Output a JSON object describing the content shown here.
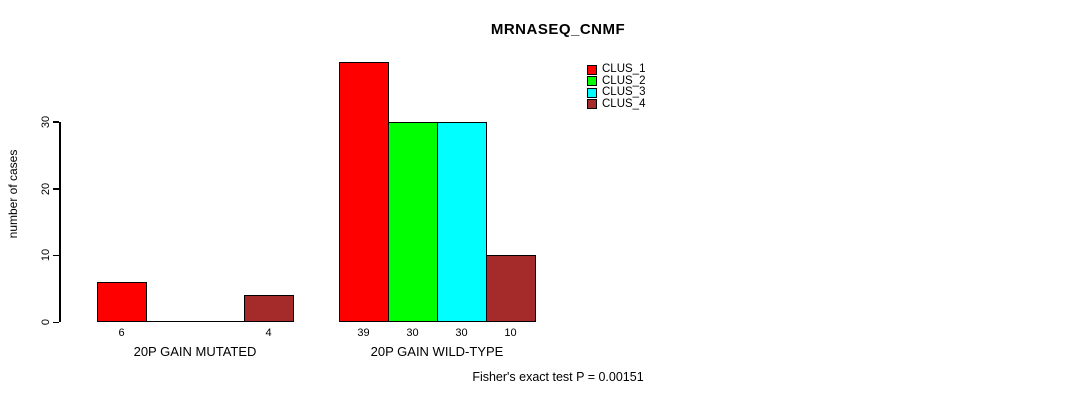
{
  "title": "MRNASEQ_CNMF",
  "y_axis": {
    "label": "number of cases"
  },
  "footnote": "Fisher's exact test P = 0.00151",
  "chart_data": {
    "type": "bar",
    "title": "MRNASEQ_CNMF",
    "xlabel": "",
    "ylabel": "number of cases",
    "categories": [
      "20P GAIN MUTATED",
      "20P GAIN WILD-TYPE"
    ],
    "series": [
      {
        "name": "CLUS_1",
        "color": "#FF0000",
        "values": [
          6,
          39
        ]
      },
      {
        "name": "CLUS_2",
        "color": "#00FF00",
        "values": [
          0,
          30
        ]
      },
      {
        "name": "CLUS_3",
        "color": "#00FFFF",
        "values": [
          0,
          30
        ]
      },
      {
        "name": "CLUS_4",
        "color": "#A52A2A",
        "values": [
          4,
          10
        ]
      }
    ],
    "bar_labels": [
      [
        "6",
        "",
        "",
        "4"
      ],
      [
        "39",
        "30",
        "30",
        "10"
      ]
    ],
    "yticks": [
      0,
      10,
      20,
      30
    ],
    "ylim": [
      0,
      39
    ],
    "grid": false,
    "legend_position": "top-right",
    "annotation": "Fisher's exact test P = 0.00151"
  }
}
